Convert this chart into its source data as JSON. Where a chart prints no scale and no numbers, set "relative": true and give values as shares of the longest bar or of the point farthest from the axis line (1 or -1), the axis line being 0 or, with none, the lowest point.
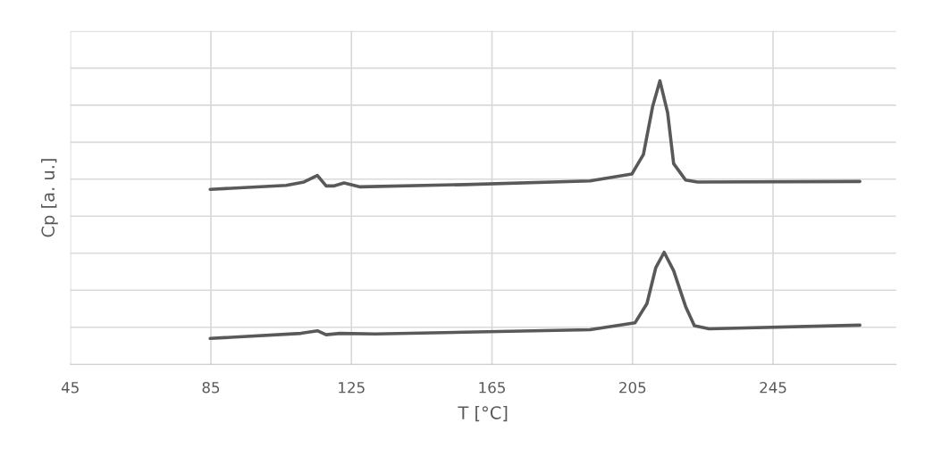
{
  "chart_data": {
    "type": "line",
    "xlabel": "T [°C]",
    "ylabel": "Cp [a. u.]",
    "relative": true,
    "tick_labels": "x",
    "grid": true,
    "marker": "none",
    "line_style": "solid",
    "xlim": [
      45,
      280
    ],
    "xticks": [
      45,
      85,
      125,
      165,
      205,
      245
    ],
    "series": [
      {
        "color": "#595959",
        "x": [
          84.8,
          106.4,
          111.5,
          115.3,
          117.8,
          119.9,
          122.9,
          127.5,
          157.3,
          192.9,
          204.8,
          208.1,
          210.7,
          212.8,
          215.0,
          216.7,
          220.1,
          223.5,
          269.7
        ],
        "values": [
          0.617,
          0.631,
          0.643,
          0.666,
          0.629,
          0.629,
          0.64,
          0.626,
          0.634,
          0.647,
          0.671,
          0.74,
          0.908,
          1.0,
          0.887,
          0.708,
          0.65,
          0.643,
          0.645
        ]
      },
      {
        "color": "#595959",
        "x": [
          84.8,
          110.6,
          115.3,
          117.8,
          121.7,
          131.9,
          157.3,
          192.9,
          205.7,
          209.1,
          211.6,
          214.0,
          216.7,
          220.1,
          222.6,
          226.8,
          269.7
        ],
        "values": [
          0.091,
          0.109,
          0.118,
          0.104,
          0.109,
          0.107,
          0.113,
          0.122,
          0.146,
          0.214,
          0.34,
          0.395,
          0.33,
          0.204,
          0.136,
          0.125,
          0.138
        ]
      }
    ]
  }
}
